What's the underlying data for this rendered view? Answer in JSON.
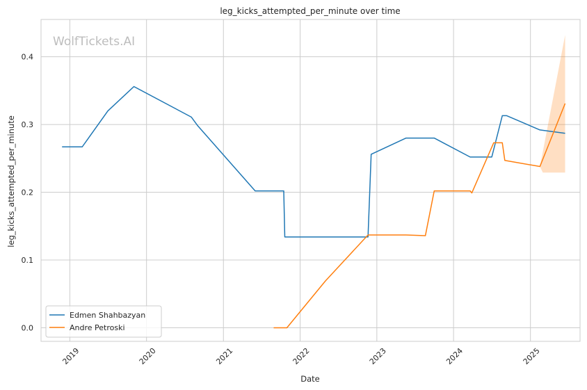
{
  "chart_data": {
    "type": "line",
    "title": "leg_kicks_attempted_per_minute over time",
    "xlabel": "Date",
    "ylabel": "leg_kicks_attempted_per_minute",
    "watermark": "WolfTickets.AI",
    "xlim": [
      "2018-08-17",
      "2025-08-25"
    ],
    "ylim": [
      -0.02,
      0.455
    ],
    "x_ticks": [
      "2019-01-01",
      "2020-01-01",
      "2021-01-01",
      "2022-01-01",
      "2023-01-01",
      "2024-01-01",
      "2025-01-01"
    ],
    "x_tick_labels": [
      "2019",
      "2020",
      "2021",
      "2022",
      "2023",
      "2024",
      "2025"
    ],
    "y_ticks": [
      0.0,
      0.1,
      0.2,
      0.3,
      0.4
    ],
    "y_tick_labels": [
      "0.0",
      "0.1",
      "0.2",
      "0.3",
      "0.4"
    ],
    "grid": true,
    "legend_position": "lower-left",
    "series": [
      {
        "name": "Edmen Shahbazyan",
        "color": "#1f77b4",
        "points": [
          [
            "2018-11-25",
            0.267
          ],
          [
            "2019-03-01",
            0.267
          ],
          [
            "2019-07-01",
            0.32
          ],
          [
            "2019-11-02",
            0.356
          ],
          [
            "2020-08-01",
            0.311
          ],
          [
            "2020-09-01",
            0.298
          ],
          [
            "2021-06-01",
            0.202
          ],
          [
            "2021-10-15",
            0.202
          ],
          [
            "2021-10-20",
            0.134
          ],
          [
            "2022-11-20",
            0.134
          ],
          [
            "2022-12-05",
            0.256
          ],
          [
            "2023-05-20",
            0.28
          ],
          [
            "2023-10-01",
            0.28
          ],
          [
            "2024-03-20",
            0.252
          ],
          [
            "2024-07-01",
            0.252
          ],
          [
            "2024-08-20",
            0.313
          ],
          [
            "2024-09-10",
            0.313
          ],
          [
            "2025-02-15",
            0.292
          ],
          [
            "2025-06-15",
            0.287
          ]
        ]
      },
      {
        "name": "Andre Petroski",
        "color": "#ff7f0e",
        "points": [
          [
            "2021-08-28",
            0.0
          ],
          [
            "2021-10-30",
            0.0
          ],
          [
            "2022-05-01",
            0.069
          ],
          [
            "2022-11-20",
            0.137
          ],
          [
            "2023-05-20",
            0.137
          ],
          [
            "2023-08-20",
            0.136
          ],
          [
            "2023-10-01",
            0.202
          ],
          [
            "2024-03-20",
            0.202
          ],
          [
            "2024-03-28",
            0.199
          ],
          [
            "2024-07-10",
            0.273
          ],
          [
            "2024-08-20",
            0.273
          ],
          [
            "2024-09-01",
            0.247
          ],
          [
            "2025-02-15",
            0.238
          ],
          [
            "2025-06-15",
            0.331
          ]
        ],
        "confidence_band": {
          "x": [
            "2025-02-15",
            "2025-03-01",
            "2025-06-15"
          ],
          "lower": [
            0.238,
            0.229,
            0.229
          ],
          "upper": [
            0.238,
            0.26,
            0.432
          ]
        }
      }
    ]
  }
}
